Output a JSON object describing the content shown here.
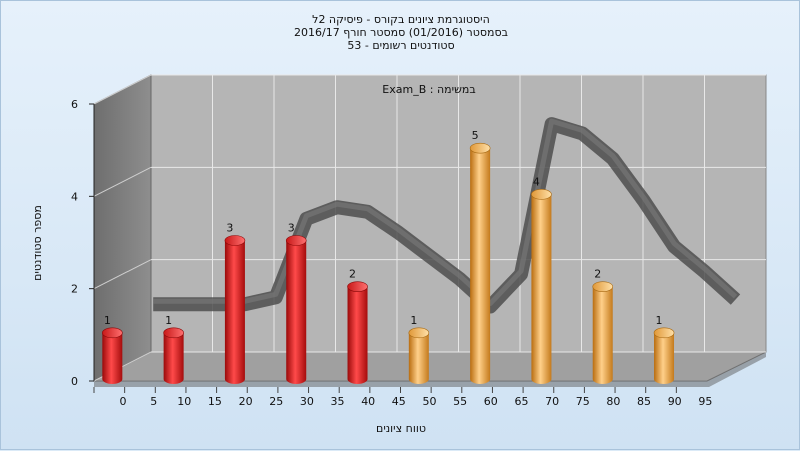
{
  "chart_data": {
    "type": "bar",
    "title_lines": [
      "היסטוגרמת ציונים בקורס - פיסיקה 2ל",
      "בסמסטר  (01/2016)  סמסטר חורף 2016/17",
      "סטודנטים רשומים - 53"
    ],
    "series_label": "Exam_B : במשימה",
    "xlabel": "טווח ציונים",
    "ylabel": "מספר סטודנטים",
    "ylim": [
      0,
      6
    ],
    "y_ticks": [
      "0",
      "2",
      "4",
      "6"
    ],
    "x_ticks": [
      "0",
      "5",
      "10",
      "15",
      "20",
      "25",
      "30",
      "35",
      "40",
      "45",
      "50",
      "55",
      "60",
      "65",
      "70",
      "75",
      "80",
      "85",
      "90",
      "95"
    ],
    "categories": [
      "0-10",
      "10-20",
      "20-30",
      "30-40",
      "40-50",
      "50-60",
      "60-70",
      "70-80",
      "80-90",
      "90-100"
    ],
    "values": [
      1,
      1,
      3,
      3,
      2,
      1,
      5,
      4,
      2,
      1
    ],
    "bar_colors": [
      "#e02020",
      "#e02020",
      "#e02020",
      "#e02020",
      "#e02020",
      "#f0a030",
      "#f0a030",
      "#f0a030",
      "#f0a030",
      "#f0a030"
    ],
    "trend_line": {
      "x": [
        5,
        15,
        20,
        25,
        30,
        35,
        40,
        45,
        50,
        55,
        60,
        65,
        70,
        75,
        80,
        85,
        90,
        95,
        100
      ],
      "y": [
        1.35,
        1.35,
        1.35,
        1.5,
        3.2,
        3.45,
        3.35,
        2.9,
        2.4,
        1.9,
        1.3,
        2.0,
        5.25,
        5.05,
        4.5,
        3.6,
        2.6,
        2.05,
        1.45
      ]
    },
    "grid": true,
    "colors": {
      "wall": "#b5b5b5",
      "side_wall": "#808080",
      "floor": "#a0a0a0",
      "trend": "#606060"
    }
  }
}
